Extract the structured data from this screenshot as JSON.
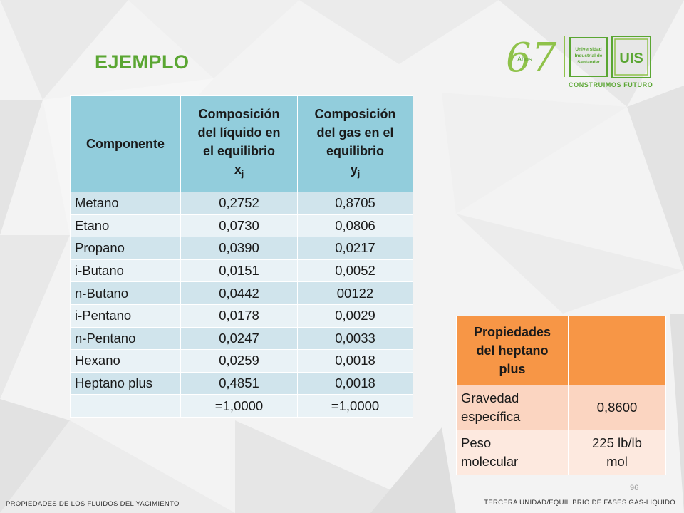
{
  "slide": {
    "title": "EJEMPLO",
    "page_number": "96",
    "footer_left": "PROPIEDADES DE LOS FLUIDOS DEL YACIMIENTO",
    "footer_right": "TERCERA UNIDAD/EQUILIBRIO DE FASES GAS-LÍQUIDO"
  },
  "logo": {
    "anniversary_number": "67",
    "anniversary_word": "Años",
    "university_line1": "Universidad",
    "university_line2": "Industrial de",
    "university_line3": "Santander",
    "mark": "UIS",
    "slogan": "CONSTRUIMOS FUTURO",
    "brand_color": "#5aa632"
  },
  "composition_table": {
    "headers": {
      "component": "Componente",
      "liquid_line1": "Composición",
      "liquid_line2": "del líquido en",
      "liquid_line3": "el equilibrio",
      "liquid_symbol": "x",
      "liquid_subscript": "j",
      "gas_line1": "Composición",
      "gas_line2": "del gas en el",
      "gas_line3": "equilibrio",
      "gas_symbol": "y",
      "gas_subscript": "j"
    },
    "rows": [
      {
        "component": "Metano",
        "x": "0,2752",
        "y": "0,8705"
      },
      {
        "component": "Etano",
        "x": "0,0730",
        "y": "0,0806"
      },
      {
        "component": "Propano",
        "x": "0,0390",
        "y": "0,0217"
      },
      {
        "component": "i-Butano",
        "x": "0,0151",
        "y": "0,0052"
      },
      {
        "component": "n-Butano",
        "x": "0,0442",
        "y": "00122"
      },
      {
        "component": "i-Pentano",
        "x": "0,0178",
        "y": "0,0029"
      },
      {
        "component": "n-Pentano",
        "x": "0,0247",
        "y": "0,0033"
      },
      {
        "component": "Hexano",
        "x": "0,0259",
        "y": "0,0018"
      },
      {
        "component": "Heptano plus",
        "x": "0,4851",
        "y": "0,0018"
      }
    ],
    "totals": {
      "component": "",
      "x": "=1,0000",
      "y": "=1,0000"
    },
    "header_color": "#92cddc"
  },
  "heptane_table": {
    "header_line1": "Propiedades",
    "header_line2": "del heptano",
    "header_line3": "plus",
    "header_right": "",
    "rows": [
      {
        "label_line1": "Gravedad",
        "label_line2": "específica",
        "value_line1": "0,8600",
        "value_line2": ""
      },
      {
        "label_line1": "Peso",
        "label_line2": "molecular",
        "value_line1": "225 lb/lb",
        "value_line2": "mol"
      }
    ],
    "header_color": "#f79646"
  }
}
